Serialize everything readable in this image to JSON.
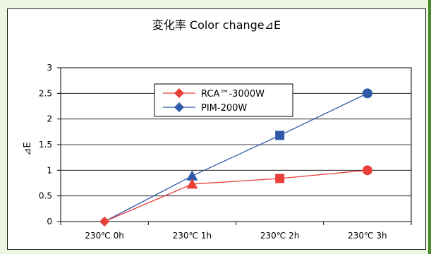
{
  "chart_data": {
    "type": "line",
    "title": "変化率 Color change⊿E",
    "ylabel": "⊿E",
    "xlabel": "",
    "categories": [
      "230℃ 0h",
      "230℃ 1h",
      "230℃ 2h",
      "230℃ 3h"
    ],
    "ylim": [
      0,
      3
    ],
    "yticks": [
      "0",
      "0.5",
      "1",
      "1.5",
      "2",
      "2.5",
      "3"
    ],
    "grid": true,
    "legend_position": "top-center",
    "series": [
      {
        "name": "RCA™-3000W",
        "values": [
          0,
          0.73,
          0.84,
          1.0
        ],
        "color": "#e8413a",
        "markers": [
          "diamond",
          "triangle",
          "square",
          "circle"
        ]
      },
      {
        "name": "PIM-200W",
        "values": [
          0,
          0.89,
          1.68,
          2.5
        ],
        "color": "#2f5aa8",
        "markers": [
          "diamond",
          "triangle",
          "square",
          "circle"
        ]
      }
    ],
    "legend_marker": "diamond"
  },
  "colors": {
    "background": "#ecf6e2",
    "panel": "#ffffff",
    "grid": "#000000",
    "accent_strip": "#4a8a2a"
  }
}
